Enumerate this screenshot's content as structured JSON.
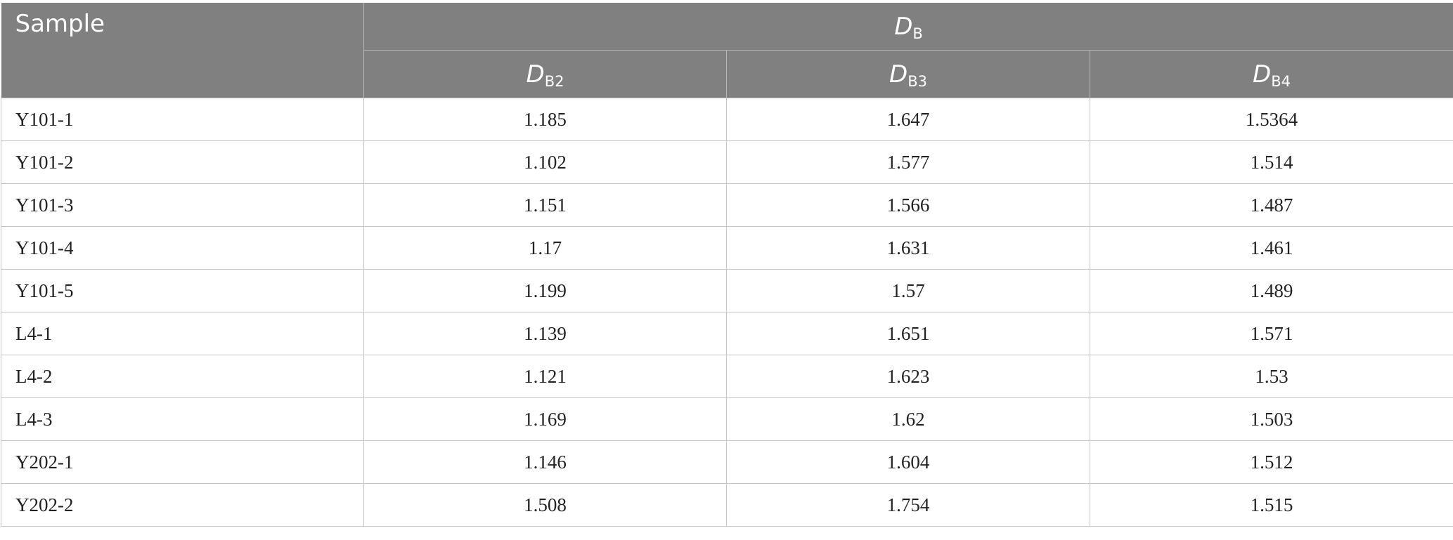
{
  "table": {
    "header": {
      "sample": "Sample",
      "group": {
        "var": "D",
        "sub": "B"
      },
      "columns": [
        {
          "var": "D",
          "sub": "B2"
        },
        {
          "var": "D",
          "sub": "B3"
        },
        {
          "var": "D",
          "sub": "B4"
        }
      ]
    },
    "rows": [
      {
        "sample": "Y101-1",
        "b2": "1.185",
        "b3": "1.647",
        "b4": "1.5364"
      },
      {
        "sample": "Y101-2",
        "b2": "1.102",
        "b3": "1.577",
        "b4": "1.514"
      },
      {
        "sample": "Y101-3",
        "b2": "1.151",
        "b3": "1.566",
        "b4": "1.487"
      },
      {
        "sample": "Y101-4",
        "b2": "1.17",
        "b3": "1.631",
        "b4": "1.461"
      },
      {
        "sample": "Y101-5",
        "b2": "1.199",
        "b3": "1.57",
        "b4": "1.489"
      },
      {
        "sample": "L4-1",
        "b2": "1.139",
        "b3": "1.651",
        "b4": "1.571"
      },
      {
        "sample": "L4-2",
        "b2": "1.121",
        "b3": "1.623",
        "b4": "1.53"
      },
      {
        "sample": "L4-3",
        "b2": "1.169",
        "b3": "1.62",
        "b4": "1.503"
      },
      {
        "sample": "Y202-1",
        "b2": "1.146",
        "b3": "1.604",
        "b4": "1.512"
      },
      {
        "sample": "Y202-2",
        "b2": "1.508",
        "b3": "1.754",
        "b4": "1.515"
      }
    ]
  }
}
